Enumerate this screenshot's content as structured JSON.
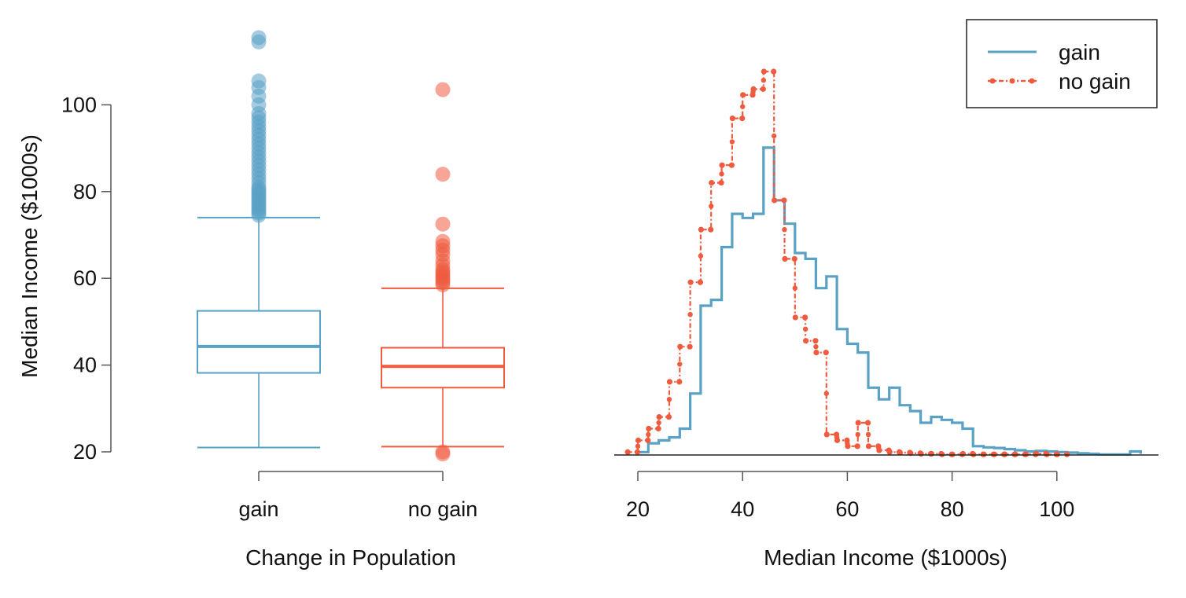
{
  "chart_data": [
    {
      "type": "box",
      "xlabel": "Change in Population",
      "ylabel": "Median Income ($1000s)",
      "categories": [
        "gain",
        "no gain"
      ],
      "yticks": [
        20,
        40,
        60,
        80,
        100
      ],
      "ylim": [
        20,
        110
      ],
      "colors": {
        "gain": "#5aa1c6",
        "no gain": "#ef5b3f"
      },
      "boxes": [
        {
          "name": "gain",
          "whisker_low": 21,
          "q1": 38.2,
          "median": 44.3,
          "q3": 52.5,
          "whisker_high": 74,
          "outliers": [
            74.5,
            75,
            75.5,
            76,
            76.5,
            77,
            77.5,
            78,
            78.5,
            79,
            79.5,
            80,
            80.5,
            81,
            82,
            83,
            84,
            85,
            86,
            87,
            88,
            89,
            90,
            91,
            92,
            93,
            94,
            95,
            96,
            97,
            98,
            100,
            102,
            104,
            105.5,
            114.5,
            115.5
          ]
        },
        {
          "name": "no gain",
          "whisker_low": 21.2,
          "q1": 34.8,
          "median": 39.7,
          "q3": 44,
          "whisker_high": 57.7,
          "outliers": [
            19.5,
            20,
            58.5,
            59,
            59.5,
            60,
            60.5,
            61,
            61.5,
            62,
            63,
            64,
            65.5,
            66.5,
            67.5,
            68.5,
            72.5,
            84,
            103.5
          ]
        }
      ]
    },
    {
      "type": "line",
      "xlabel": "Median Income ($1000s)",
      "ylabel": "",
      "xticks": [
        20,
        40,
        60,
        80,
        100
      ],
      "xlim": [
        18,
        116
      ],
      "ylim": [
        0,
        0.064
      ],
      "grid": false,
      "legend_position": "top-right",
      "series": [
        {
          "name": "gain",
          "style": "step",
          "color": "#5aa1c6",
          "x": [
            20,
            22,
            24,
            26,
            28,
            30,
            32,
            34,
            36,
            38,
            40,
            42,
            44,
            46,
            48,
            50,
            52,
            54,
            56,
            58,
            60,
            62,
            64,
            66,
            68,
            70,
            72,
            74,
            76,
            78,
            80,
            82,
            84,
            86,
            88,
            90,
            92,
            94,
            96,
            98,
            100,
            102,
            104,
            106,
            108,
            110,
            112,
            114,
            116
          ],
          "values": [
            0.0005,
            0.002,
            0.0025,
            0.003,
            0.0045,
            0.0105,
            0.0255,
            0.0265,
            0.0355,
            0.0412,
            0.0405,
            0.0412,
            0.0525,
            0.0435,
            0.0395,
            0.0345,
            0.0335,
            0.0285,
            0.0305,
            0.0215,
            0.019,
            0.0175,
            0.0115,
            0.0095,
            0.0115,
            0.0085,
            0.0075,
            0.0055,
            0.0065,
            0.006,
            0.0055,
            0.0045,
            0.0015,
            0.0013,
            0.0012,
            0.001,
            0.0008,
            0.0006,
            0.0007,
            0.0006,
            0.0005,
            0.0004,
            0.0003,
            0.0002,
            0.0001,
            0.0001,
            0.0001,
            0.0006,
            0.0002
          ]
        },
        {
          "name": "no gain",
          "style": "step-points",
          "color": "#ef5b3f",
          "x": [
            18,
            20,
            22,
            24,
            26,
            28,
            30,
            32,
            34,
            36,
            38,
            40,
            42,
            44,
            46,
            48,
            50,
            52,
            54,
            56,
            58,
            60,
            62,
            64,
            66,
            68,
            70,
            72,
            74,
            76,
            78,
            80,
            82,
            84,
            86,
            88,
            90,
            92,
            94,
            96,
            98,
            100
          ],
          "values": [
            0.0005,
            0.0025,
            0.0045,
            0.0065,
            0.0125,
            0.0185,
            0.0295,
            0.0385,
            0.0465,
            0.0495,
            0.0575,
            0.0615,
            0.0625,
            0.0655,
            0.0435,
            0.0335,
            0.0235,
            0.0195,
            0.0175,
            0.0035,
            0.0025,
            0.0015,
            0.0055,
            0.0015,
            0.0008,
            0.0005,
            0.0004,
            0.0003,
            0.0002,
            0.0002,
            0.0001,
            0.0001,
            0.0002,
            0.0001,
            0.0001,
            0.0001,
            0.0001,
            0.0001,
            0.0001,
            0.0002,
            0.0001,
            0.0001
          ]
        }
      ]
    }
  ]
}
